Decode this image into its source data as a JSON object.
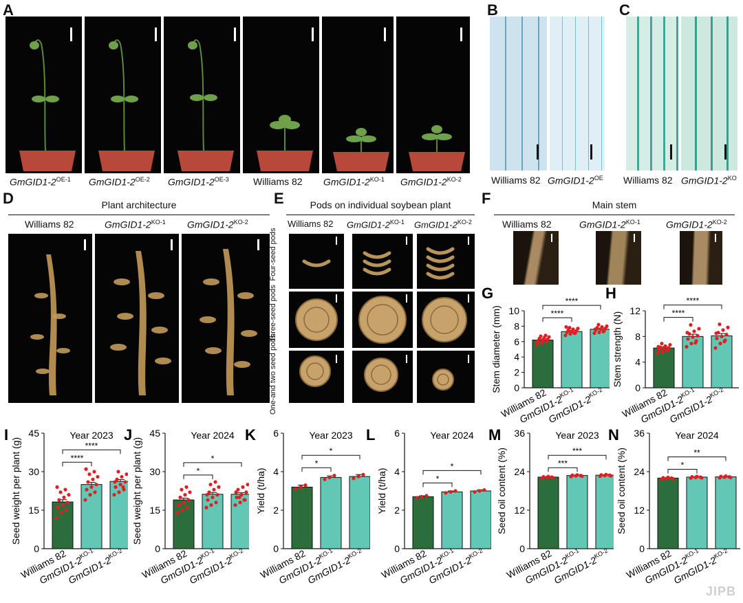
{
  "panels": {
    "A": {
      "label": "A",
      "captions": [
        {
          "gene": "GmGID1-2",
          "sup": "OE-1"
        },
        {
          "gene": "GmGID1-2",
          "sup": "OE-2"
        },
        {
          "gene": "GmGID1-2",
          "sup": "OE-3"
        },
        {
          "plain": "Williams 82"
        },
        {
          "gene": "GmGID1-2",
          "sup": "KO-1"
        },
        {
          "gene": "GmGID1-2",
          "sup": "KO-2"
        }
      ]
    },
    "B": {
      "label": "B",
      "left": "Williams 82",
      "right_gene": "GmGID1-2",
      "right_sup": "OE"
    },
    "C": {
      "label": "C",
      "left": "Williams 82",
      "right_gene": "GmGID1-2",
      "right_sup": "KO"
    },
    "D": {
      "label": "D",
      "title": "Plant architecture",
      "cols": [
        {
          "plain": "Williams 82"
        },
        {
          "gene": "GmGID1-2",
          "sup": "KO-1"
        },
        {
          "gene": "GmGID1-2",
          "sup": "KO-2"
        }
      ]
    },
    "E": {
      "label": "E",
      "title": "Pods on individual soybean plant",
      "cols": [
        {
          "plain": "Williams 82"
        },
        {
          "gene": "GmGID1-2",
          "sup": "KO-1"
        },
        {
          "gene": "GmGID1-2",
          "sup": "KO-2"
        }
      ],
      "rows": [
        "Four-seed pods",
        "Three-seed pods",
        "One-and two seed pods"
      ]
    },
    "F": {
      "label": "F",
      "title": "Main stem",
      "cols": [
        {
          "plain": "Williams 82"
        },
        {
          "gene": "GmGID1-2",
          "sup": "KO-1"
        },
        {
          "gene": "GmGID1-2",
          "sup": "KO-2"
        }
      ]
    }
  },
  "x_labels": [
    {
      "plain": "Williams 82"
    },
    {
      "gene": "GmGID1-2",
      "sup": "KO-1"
    },
    {
      "gene": "GmGID1-2",
      "sup": "KO-2"
    }
  ],
  "colors": {
    "wt": "#2c6e3b",
    "ko": "#62c7b4",
    "dots": "#e02020"
  },
  "watermark": "JIPB",
  "chart_data": [
    {
      "id": "G",
      "label": "G",
      "type": "bar",
      "title": "",
      "ylabel": "Stem diameter (mm)",
      "ylim": [
        0,
        10
      ],
      "yticks": [
        0,
        2,
        4,
        6,
        8,
        10
      ],
      "values": [
        6.2,
        7.3,
        7.6
      ],
      "errors": [
        0.15,
        0.15,
        0.15
      ],
      "dots": [
        [
          5.6,
          5.8,
          6.0,
          6.1,
          6.2,
          6.3,
          6.4,
          6.5,
          6.6,
          6.7,
          6.8,
          5.9
        ],
        [
          6.8,
          7.0,
          7.1,
          7.2,
          7.3,
          7.4,
          7.5,
          7.6,
          7.7,
          7.8,
          7.1,
          7.9
        ],
        [
          7.1,
          7.2,
          7.4,
          7.5,
          7.6,
          7.7,
          7.8,
          7.9,
          8.0,
          8.2,
          7.3,
          7.6
        ]
      ],
      "sig": [
        {
          "from": 0,
          "to": 1,
          "label": "****"
        },
        {
          "from": 0,
          "to": 2,
          "label": "****"
        }
      ]
    },
    {
      "id": "H",
      "label": "H",
      "type": "bar",
      "title": "",
      "ylabel": "Stem strength (N)",
      "ylim": [
        0,
        12
      ],
      "yticks": [
        0,
        4,
        8,
        12
      ],
      "values": [
        6.2,
        8.0,
        8.1
      ],
      "errors": [
        0.2,
        0.35,
        0.35
      ],
      "dots": [
        [
          5.4,
          5.6,
          5.8,
          6.0,
          6.1,
          6.2,
          6.3,
          6.5,
          6.7,
          6.9,
          5.9,
          6.4
        ],
        [
          6.4,
          6.9,
          7.3,
          7.6,
          7.9,
          8.1,
          8.4,
          8.8,
          9.2,
          9.8,
          7.0,
          8.6
        ],
        [
          6.2,
          6.9,
          7.4,
          7.7,
          8.0,
          8.3,
          8.6,
          9.0,
          9.4,
          9.9,
          7.2,
          8.5
        ]
      ],
      "sig": [
        {
          "from": 0,
          "to": 1,
          "label": "****"
        },
        {
          "from": 0,
          "to": 2,
          "label": "****"
        }
      ]
    },
    {
      "id": "I",
      "label": "I",
      "type": "bar",
      "title": "Year 2023",
      "ylabel": "Seed weight per plant (g)",
      "ylim": [
        0,
        45
      ],
      "yticks": [
        0,
        15,
        30,
        45
      ],
      "values": [
        18.2,
        25.0,
        26.2
      ],
      "errors": [
        0.9,
        0.8,
        0.7
      ],
      "dots": [
        [
          12,
          14,
          15,
          16,
          17,
          18,
          19,
          20,
          21,
          22,
          23,
          24
        ],
        [
          19,
          21,
          22,
          23,
          24,
          25,
          26,
          27,
          28,
          29,
          30,
          31
        ],
        [
          21,
          22,
          23,
          24,
          25,
          26,
          27,
          28,
          29,
          30,
          24,
          26
        ]
      ],
      "sig": [
        {
          "from": 0,
          "to": 1,
          "label": "****"
        },
        {
          "from": 0,
          "to": 2,
          "label": "****"
        }
      ]
    },
    {
      "id": "J",
      "label": "J",
      "type": "bar",
      "title": "Year 2024",
      "ylabel": "Seed weight per plant (g)",
      "ylim": [
        0,
        45
      ],
      "yticks": [
        0,
        15,
        30,
        45
      ],
      "values": [
        19.0,
        21.2,
        21.2
      ],
      "errors": [
        0.7,
        0.7,
        0.6
      ],
      "dots": [
        [
          14,
          15,
          16,
          17,
          18,
          19,
          20,
          21,
          22,
          23,
          24,
          17
        ],
        [
          16,
          17,
          18,
          19,
          20,
          21,
          22,
          23,
          24,
          25,
          26,
          21
        ],
        [
          17,
          18,
          19,
          20,
          21,
          22,
          23,
          24,
          25,
          20,
          19,
          22
        ]
      ],
      "sig": [
        {
          "from": 0,
          "to": 1,
          "label": "*"
        },
        {
          "from": 0,
          "to": 2,
          "label": "*"
        }
      ]
    },
    {
      "id": "K",
      "label": "K",
      "type": "bar",
      "title": "Year 2023",
      "ylabel": "Yield (t/ha)",
      "ylim": [
        0,
        6
      ],
      "yticks": [
        0,
        2,
        4,
        6
      ],
      "values": [
        3.2,
        3.7,
        3.75
      ],
      "errors": [
        0.1,
        0.08,
        0.1
      ],
      "dots": [
        [
          3.1,
          3.2,
          3.3
        ],
        [
          3.6,
          3.7,
          3.8
        ],
        [
          3.65,
          3.75,
          3.85
        ]
      ],
      "sig": [
        {
          "from": 0,
          "to": 1,
          "label": "*"
        },
        {
          "from": 0,
          "to": 2,
          "label": "*"
        }
      ]
    },
    {
      "id": "L",
      "label": "L",
      "type": "bar",
      "title": "Year 2024",
      "ylabel": "Yield (t/ha)",
      "ylim": [
        0,
        6
      ],
      "yticks": [
        0,
        2,
        4,
        6
      ],
      "values": [
        2.7,
        2.95,
        3.0
      ],
      "errors": [
        0.05,
        0.05,
        0.06
      ],
      "dots": [
        [
          2.65,
          2.7,
          2.75
        ],
        [
          2.9,
          2.95,
          3.0
        ],
        [
          2.95,
          3.0,
          3.05
        ]
      ],
      "sig": [
        {
          "from": 0,
          "to": 1,
          "label": "*"
        },
        {
          "from": 0,
          "to": 2,
          "label": "*"
        }
      ]
    },
    {
      "id": "M",
      "label": "M",
      "type": "bar",
      "title": "Year 2023",
      "ylabel": "Seed oil content (%)",
      "ylim": [
        0,
        36
      ],
      "yticks": [
        0,
        12,
        24,
        36
      ],
      "values": [
        22.3,
        22.8,
        22.9
      ],
      "errors": [
        0.1,
        0.1,
        0.1
      ],
      "dots": [
        [
          22.0,
          22.2,
          22.3,
          22.4,
          22.5,
          22.1
        ],
        [
          22.5,
          22.7,
          22.8,
          22.9,
          23.0,
          22.6
        ],
        [
          22.6,
          22.8,
          22.9,
          23.0,
          23.1,
          22.7
        ]
      ],
      "sig": [
        {
          "from": 0,
          "to": 1,
          "label": "***"
        },
        {
          "from": 0,
          "to": 2,
          "label": "***"
        }
      ]
    },
    {
      "id": "N",
      "label": "N",
      "type": "bar",
      "title": "Year 2024",
      "ylabel": "Seed oil content (%)",
      "ylim": [
        0,
        36
      ],
      "yticks": [
        0,
        12,
        24,
        36
      ],
      "values": [
        22.0,
        22.3,
        22.4
      ],
      "errors": [
        0.1,
        0.1,
        0.1
      ],
      "dots": [
        [
          21.7,
          21.9,
          22.0,
          22.1,
          22.2,
          21.8
        ],
        [
          22.0,
          22.2,
          22.3,
          22.4,
          22.5,
          22.1
        ],
        [
          22.1,
          22.3,
          22.4,
          22.5,
          22.6,
          22.2
        ]
      ],
      "sig": [
        {
          "from": 0,
          "to": 1,
          "label": "*"
        },
        {
          "from": 0,
          "to": 2,
          "label": "**"
        }
      ]
    }
  ]
}
